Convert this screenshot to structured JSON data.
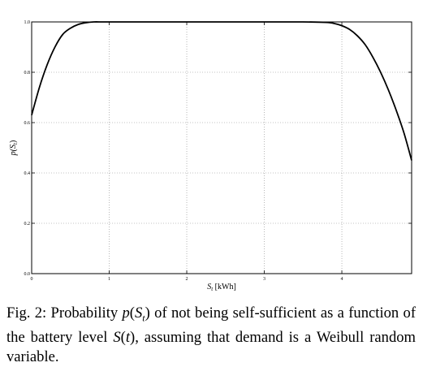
{
  "chart_data": {
    "type": "line",
    "title": "",
    "xlabel_main": "S",
    "xlabel_sub": "t",
    "xlabel_unit": " [kWh]",
    "ylabel_main": "p(S",
    "ylabel_sub": "t",
    "ylabel_close": ")",
    "xlim": [
      0,
      4.9
    ],
    "ylim": [
      0,
      1.0
    ],
    "grid": true,
    "xticks": [
      0,
      1,
      2,
      3,
      4
    ],
    "xtick_labels": [
      "0",
      "1",
      "2",
      "3",
      "4"
    ],
    "yticks": [
      0.0,
      0.2,
      0.4,
      0.6,
      0.8,
      1.0
    ],
    "ytick_labels": [
      "0.0",
      "0.2",
      "0.4",
      "0.6",
      "0.8",
      "1.0"
    ],
    "series": [
      {
        "color": "#000000",
        "x": [
          0,
          0.1,
          0.2,
          0.3,
          0.4,
          0.5,
          0.6,
          0.7,
          0.8,
          0.9,
          1.0,
          1.5,
          2.0,
          2.5,
          3.0,
          3.5,
          3.8,
          3.9,
          4.0,
          4.1,
          4.2,
          4.3,
          4.4,
          4.5,
          4.6,
          4.7,
          4.8,
          4.9
        ],
        "y": [
          0.63,
          0.74,
          0.83,
          0.9,
          0.95,
          0.975,
          0.99,
          0.997,
          1.0,
          1.0,
          1.0,
          1.0,
          1.0,
          1.0,
          1.0,
          1.0,
          0.998,
          0.994,
          0.985,
          0.97,
          0.945,
          0.91,
          0.86,
          0.8,
          0.73,
          0.65,
          0.56,
          0.45
        ]
      }
    ]
  },
  "caption": {
    "prefix": "Fig. 2: Probability ",
    "p": "p",
    "open1": "(",
    "s": "S",
    "sub": "t",
    "close1": ")",
    "mid": " of not being self-sufficient as a function of the battery level ",
    "s2": "S",
    "open2": "(",
    "t2": "t",
    "close2": ")",
    "suffix": ", assuming that demand is a Weibull random variable."
  }
}
